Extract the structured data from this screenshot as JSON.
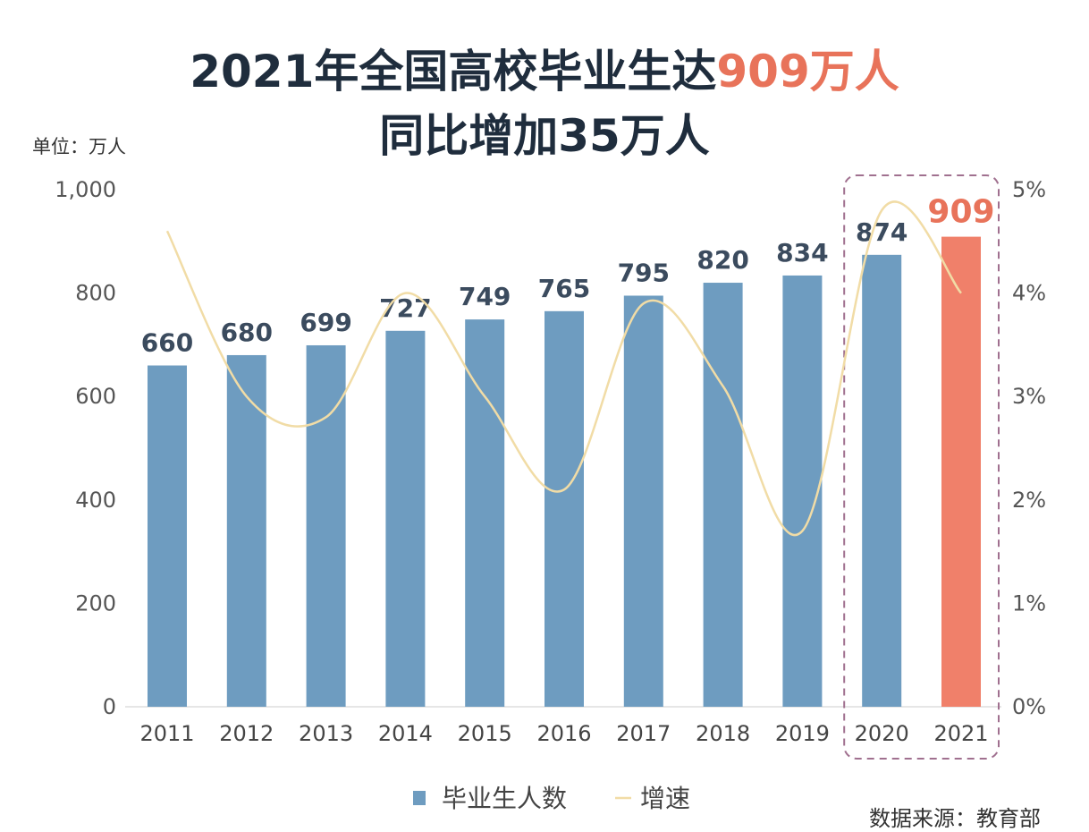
{
  "title": {
    "line1_prefix": "2021年全国高校毕业生达",
    "line1_highlight": "909万人",
    "line2": "同比增加35万人"
  },
  "unit_label": "单位：万人",
  "source": "数据来源：教育部",
  "colors": {
    "bar": "#6e9cc0",
    "highlight_bar": "#f0806a",
    "line": "#f1dca6",
    "highlight_text": "#e8735a",
    "box": "#a0708f",
    "text": "#3b4b5e"
  },
  "chart_data": {
    "type": "bar",
    "categories": [
      "2011",
      "2012",
      "2013",
      "2014",
      "2015",
      "2016",
      "2017",
      "2018",
      "2019",
      "2020",
      "2021"
    ],
    "series": [
      {
        "name": "毕业生人数",
        "type": "bar",
        "axis": "left",
        "values": [
          660,
          680,
          699,
          727,
          749,
          765,
          795,
          820,
          834,
          874,
          909
        ]
      },
      {
        "name": "增速",
        "type": "line",
        "axis": "right",
        "values": [
          4.6,
          3.0,
          2.8,
          4.0,
          3.0,
          2.1,
          3.9,
          3.1,
          1.7,
          4.8,
          4.0
        ]
      }
    ],
    "left_axis": {
      "ylim": [
        0,
        1000
      ],
      "ticks": [
        "0",
        "200",
        "400",
        "600",
        "800",
        "1,000"
      ]
    },
    "right_axis": {
      "ylim": [
        0,
        5
      ],
      "ticks": [
        "0%",
        "1%",
        "2%",
        "3%",
        "4%",
        "5%"
      ]
    },
    "highlight_categories": [
      "2020",
      "2021"
    ],
    "legend": {
      "position": "bottom",
      "entries": [
        "毕业生人数",
        "增速"
      ]
    }
  }
}
